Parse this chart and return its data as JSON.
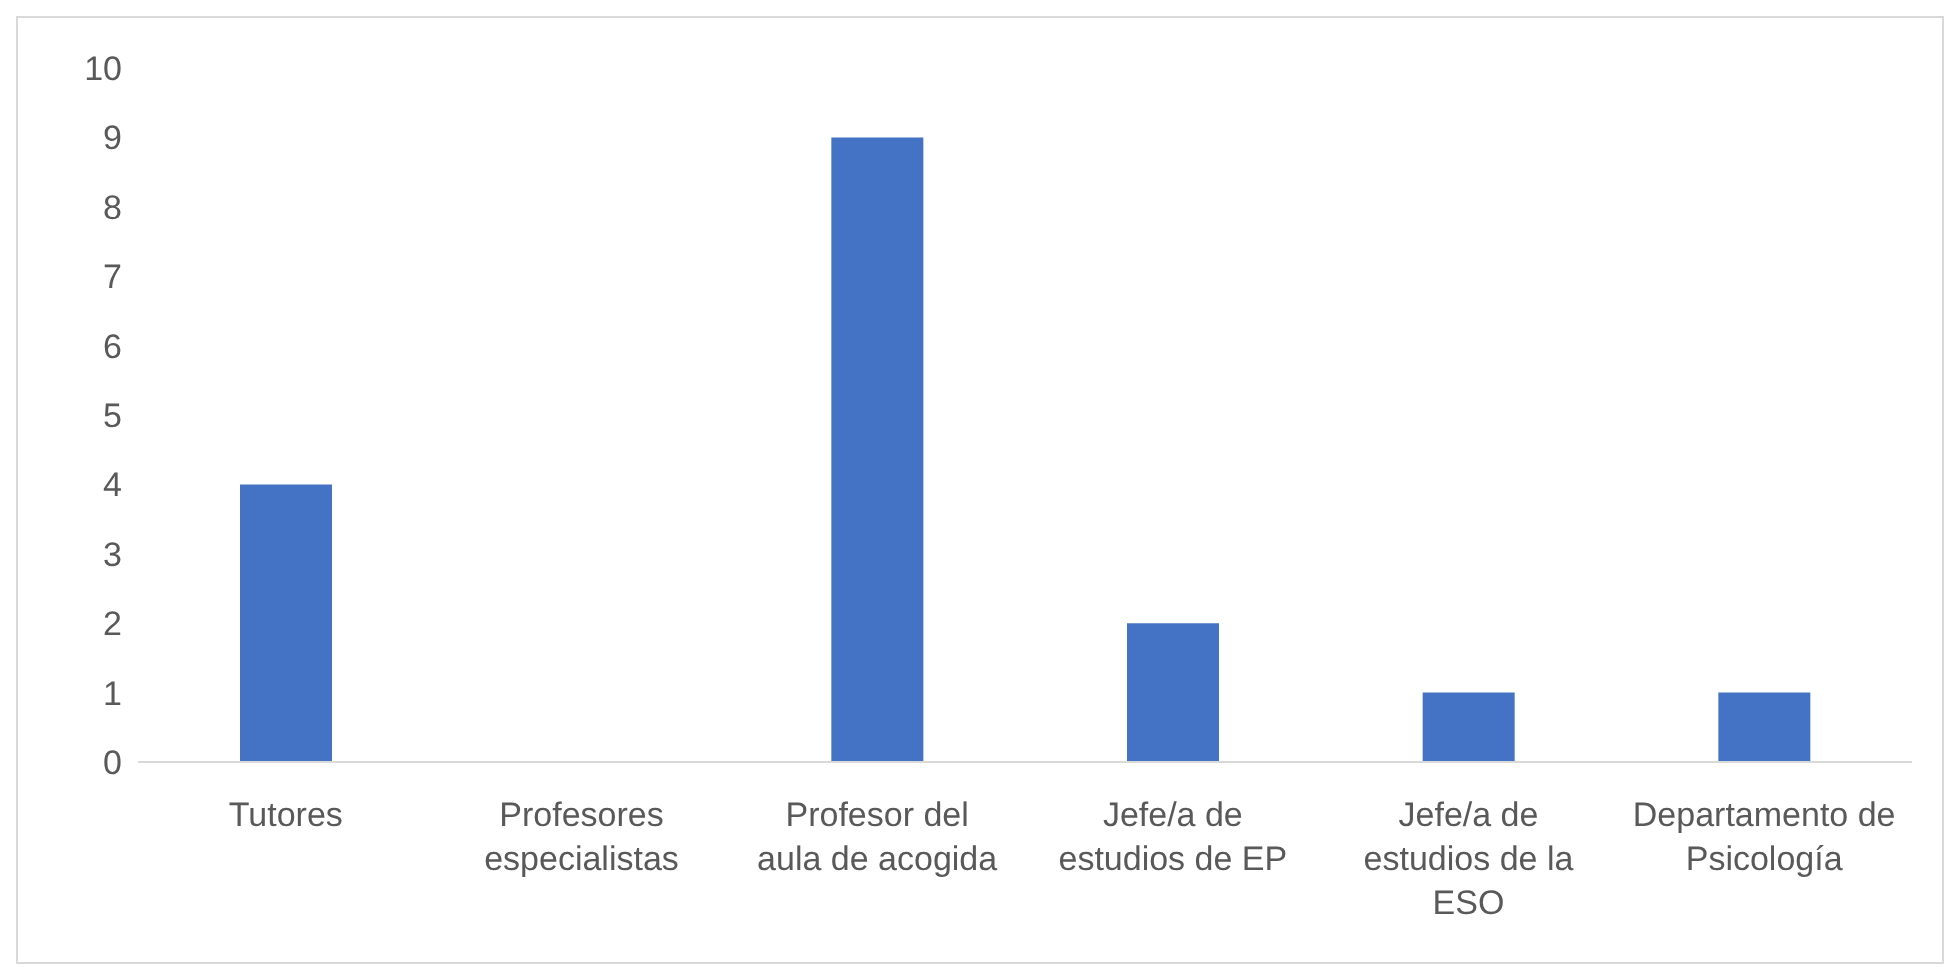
{
  "chart_data": {
    "type": "bar",
    "categories": [
      "Tutores",
      "Profesores especialistas",
      "Profesor del aula de acogida",
      "Jefe/a de estudios de EP",
      "Jefe/a de estudios de la ESO",
      "Departamento de Psicología"
    ],
    "values": [
      4,
      0,
      9,
      2,
      1,
      1
    ],
    "color": "#4472c4",
    "ylim": [
      0,
      10
    ],
    "yticks": [
      0,
      1,
      2,
      3,
      4,
      5,
      6,
      7,
      8,
      9,
      10
    ]
  }
}
